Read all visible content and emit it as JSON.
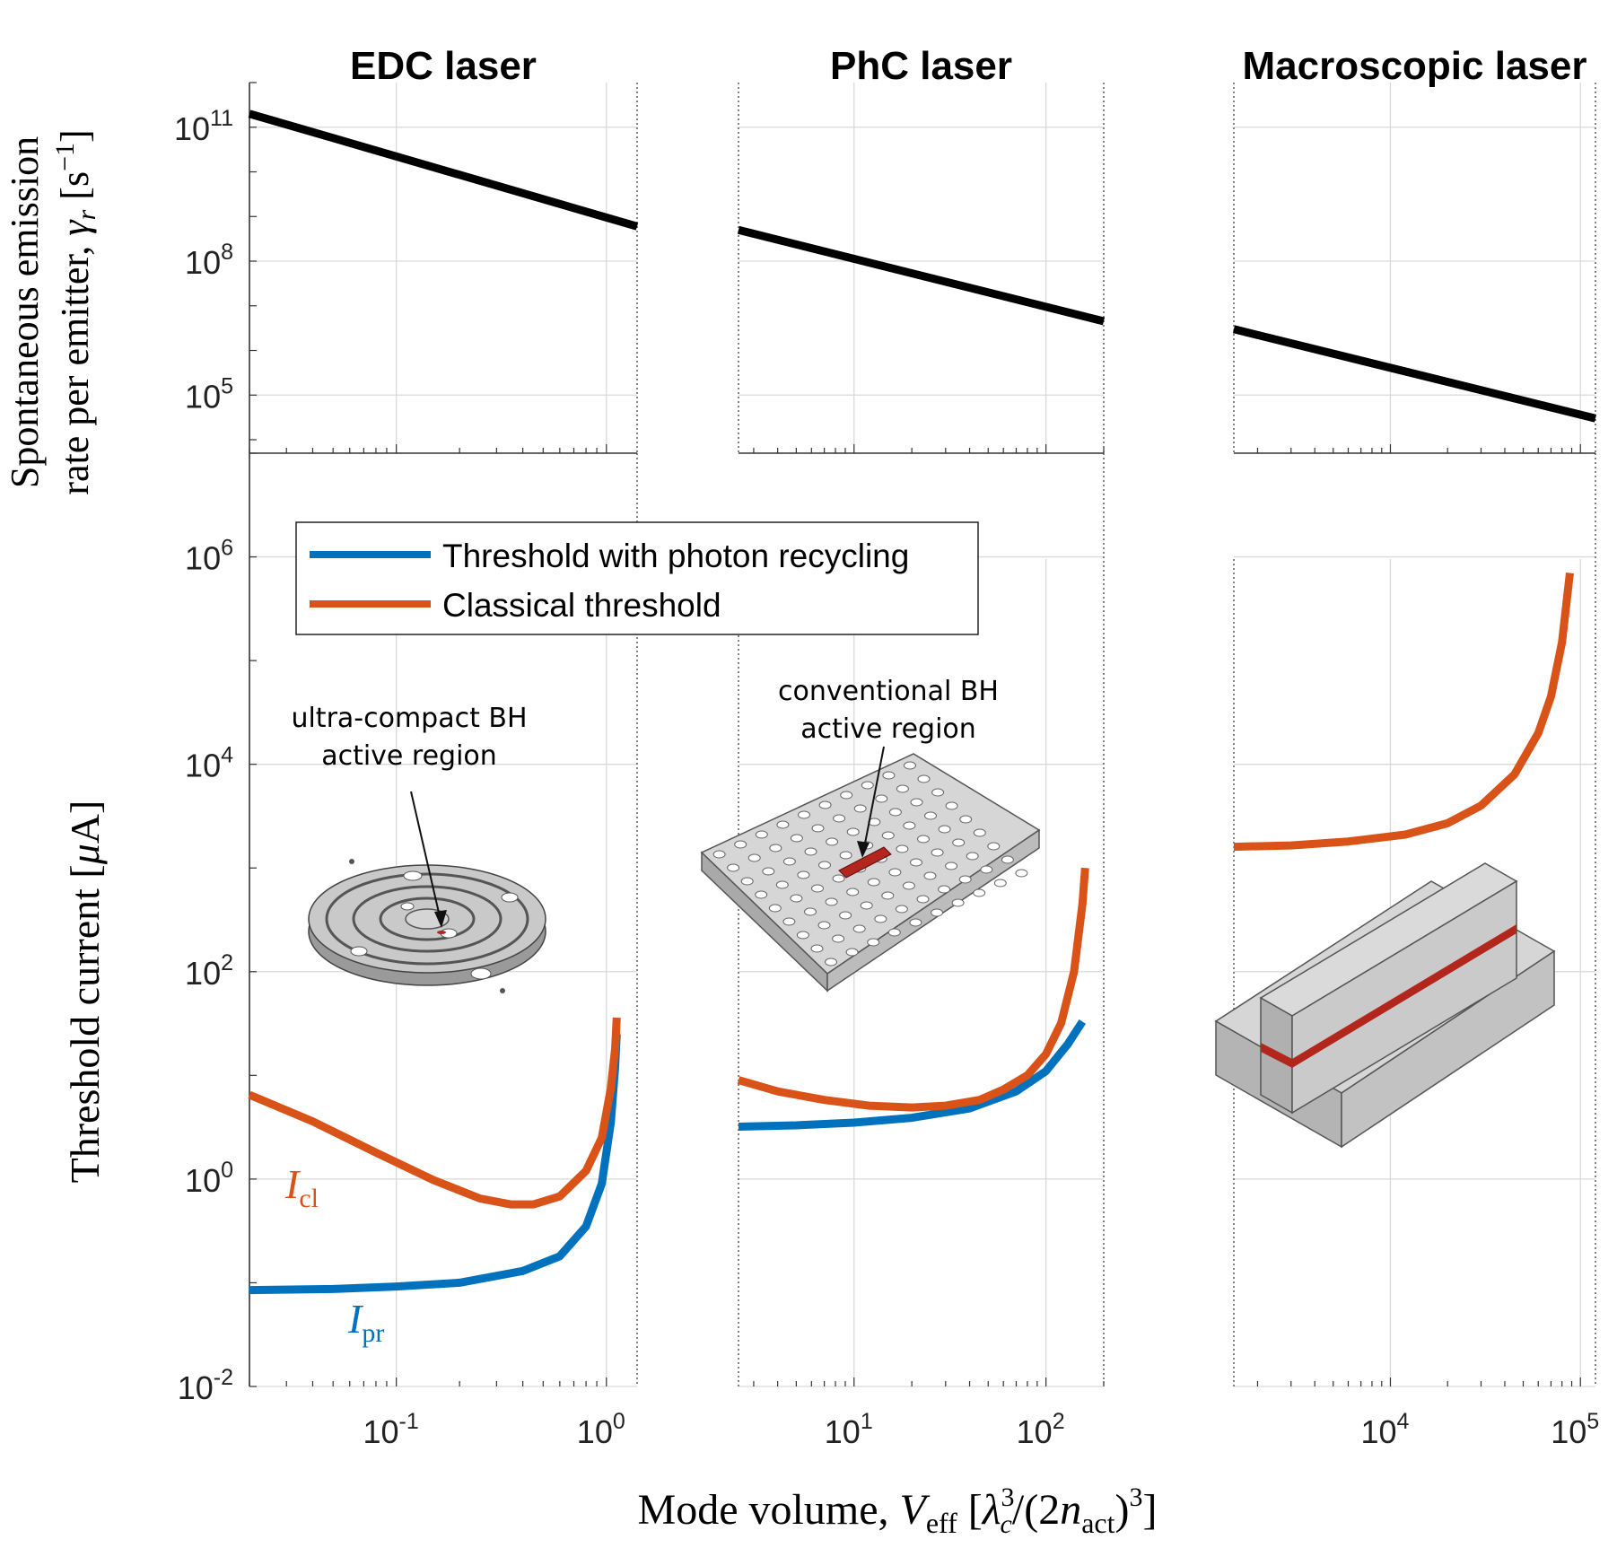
{
  "chart_data": {
    "type": "line",
    "x_scale": "log",
    "y_scale": "log",
    "panels": [
      {
        "id": "edc",
        "title": "EDC laser",
        "xlim": [
          0.02,
          1.4
        ],
        "x_ticks": [
          {
            "value": 0.1,
            "base": "10",
            "exp": "-1"
          },
          {
            "value": 1,
            "base": "10",
            "exp": "0"
          }
        ],
        "emission_rate": {
          "x": [
            0.02,
            1.4
          ],
          "y": [
            200000000000,
            600000000
          ]
        },
        "threshold_pr": {
          "name": "I_pr",
          "x": [
            0.02,
            0.05,
            0.1,
            0.2,
            0.4,
            0.6,
            0.8,
            0.95,
            1.05,
            1.1,
            1.12
          ],
          "y": [
            0.085,
            0.087,
            0.092,
            0.1,
            0.13,
            0.18,
            0.35,
            0.9,
            3.5,
            12,
            25
          ]
        },
        "threshold_cl": {
          "name": "I_cl",
          "x": [
            0.02,
            0.04,
            0.08,
            0.15,
            0.25,
            0.35,
            0.45,
            0.6,
            0.8,
            0.95,
            1.05,
            1.1,
            1.12
          ],
          "y": [
            6.5,
            3.6,
            1.8,
            0.98,
            0.65,
            0.57,
            0.57,
            0.68,
            1.2,
            2.5,
            7.5,
            18,
            36
          ]
        },
        "inset_label": [
          "ultra-compact BH",
          "active region"
        ]
      },
      {
        "id": "phc",
        "title": "PhC laser",
        "xlim": [
          2.5,
          200
        ],
        "x_ticks": [
          {
            "value": 10,
            "base": "10",
            "exp": "1"
          },
          {
            "value": 100,
            "base": "10",
            "exp": "2"
          }
        ],
        "emission_rate": {
          "x": [
            2.5,
            200
          ],
          "y": [
            500000000,
            4500000
          ]
        },
        "threshold_pr": {
          "name": "I_pr",
          "x": [
            2.5,
            5,
            10,
            20,
            40,
            70,
            100,
            130,
            155
          ],
          "y": [
            3.2,
            3.3,
            3.5,
            3.9,
            4.8,
            7,
            11,
            20,
            33
          ]
        },
        "threshold_cl": {
          "name": "I_cl",
          "x": [
            2.5,
            4,
            7,
            12,
            20,
            30,
            45,
            60,
            80,
            100,
            120,
            140,
            155,
            160
          ],
          "y": [
            9,
            7,
            5.8,
            5.1,
            4.9,
            5.1,
            5.8,
            7.3,
            10,
            16,
            32,
            100,
            450,
            1000
          ]
        },
        "inset_label": [
          "conventional BH",
          "active region"
        ]
      },
      {
        "id": "macro",
        "title": "Macroscopic laser",
        "xlim": [
          1500,
          120000
        ],
        "x_ticks": [
          {
            "value": 10000,
            "base": "10",
            "exp": "4"
          },
          {
            "value": 100000,
            "base": "10",
            "exp": "5"
          }
        ],
        "emission_rate": {
          "x": [
            1500,
            120000
          ],
          "y": [
            3000000,
            30000
          ]
        },
        "threshold_cl": {
          "name": "I_cl",
          "x": [
            1500,
            3000,
            6000,
            12000,
            20000,
            30000,
            45000,
            60000,
            70000,
            80000,
            85000,
            88000
          ],
          "y": [
            1600,
            1650,
            1800,
            2100,
            2700,
            4000,
            8000,
            20000,
            45000,
            150000,
            400000,
            700000
          ]
        }
      }
    ],
    "top_axis": {
      "ylim": [
        5000,
        1000000000000
      ],
      "y_ticks": [
        {
          "value": 100000,
          "base": "10",
          "exp": "5"
        },
        {
          "value": 100000000,
          "base": "10",
          "exp": "8"
        },
        {
          "value": 100000000000,
          "base": "10",
          "exp": "11"
        }
      ],
      "ylabel_line1": "Spontaneous emission",
      "ylabel_line2": "rate per emitter, ",
      "ylabel_symbol": "γ",
      "ylabel_sub": "r",
      "ylabel_unit": " [s",
      "ylabel_unit_exp": "−1",
      "ylabel_unit_end": "]"
    },
    "bottom_axis": {
      "ylim": [
        0.01,
        10000000
      ],
      "y_ticks": [
        {
          "value": 0.01,
          "base": "10",
          "exp": "-2"
        },
        {
          "value": 1,
          "base": "10",
          "exp": "0"
        },
        {
          "value": 100,
          "base": "10",
          "exp": "2"
        },
        {
          "value": 10000,
          "base": "10",
          "exp": "4"
        },
        {
          "value": 1000000,
          "base": "10",
          "exp": "6"
        }
      ],
      "ylabel": "Threshold current [",
      "ylabel_symbol": "μ",
      "ylabel_unit": "A]"
    },
    "xlabel": {
      "text": "Mode volume, ",
      "symbol": "V",
      "sub": "eff",
      "bracket_open": " [",
      "lambda": "λ",
      "lambda_sup": "3",
      "lambda_sub": "c",
      "middle": "/(2",
      "n": "n",
      "n_sub": "act",
      "close": ")",
      "close_sup": "3",
      "bracket_close": "]"
    },
    "legend": {
      "position": "top-left of lower panels",
      "entries": [
        {
          "label": "Threshold with photon recycling",
          "color": "#0072BD"
        },
        {
          "label": "Classical threshold",
          "color": "#D95319"
        }
      ]
    },
    "annotations": {
      "i_cl": {
        "symbol": "I",
        "sub": "cl"
      },
      "i_pr": {
        "symbol": "I",
        "sub": "pr"
      }
    },
    "colors": {
      "photon_recycling": "#0072BD",
      "classical": "#D95319",
      "emission": "#000000",
      "grid": "#d9d9d9",
      "device_fill": "#c8c8c8",
      "active_region": "#b3261e"
    }
  }
}
